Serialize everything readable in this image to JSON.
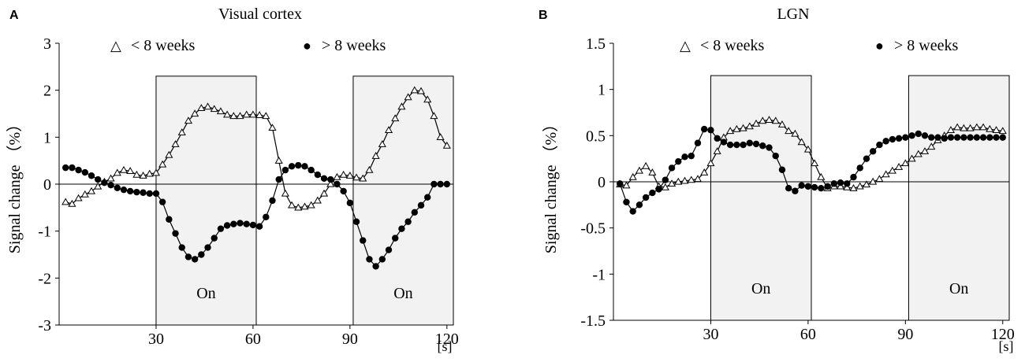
{
  "chart_data": [
    {
      "type": "line",
      "panel_label": "A",
      "title": "Visual cortex",
      "xlabel": "[s]",
      "ylabel": "Signal change （%）",
      "xlim": [
        0,
        122
      ],
      "ylim": [
        -3,
        3
      ],
      "xticks": [
        30,
        60,
        90,
        120
      ],
      "xtick_labels": [
        "30",
        "60",
        "90",
        "120"
      ],
      "yticks": [
        3,
        2,
        1,
        0,
        -1,
        -2,
        -3
      ],
      "ytick_labels": [
        "3",
        "2",
        "1",
        "0",
        "-1",
        "-2",
        "-3"
      ],
      "on_blocks": [
        {
          "label": "On",
          "start": 30,
          "end": 61,
          "top": 2.3
        },
        {
          "label": "On",
          "start": 91,
          "end": 122,
          "top": 2.3
        }
      ],
      "legend": [
        {
          "marker": "open-triangle",
          "symbol": "△",
          "label": "< 8 weeks"
        },
        {
          "marker": "filled-circle",
          "symbol": "●",
          "label": "> 8 weeks"
        }
      ],
      "series": [
        {
          "name": "< 8 weeks",
          "marker": "open-triangle",
          "x": [
            2,
            4,
            6,
            8,
            10,
            12,
            14,
            16,
            18,
            20,
            22,
            24,
            26,
            28,
            30,
            32,
            34,
            36,
            38,
            40,
            42,
            44,
            46,
            48,
            50,
            52,
            54,
            56,
            58,
            60,
            62,
            64,
            66,
            68,
            70,
            72,
            74,
            76,
            78,
            80,
            82,
            84,
            86,
            88,
            90,
            92,
            94,
            96,
            98,
            100,
            102,
            104,
            106,
            108,
            110,
            112,
            114,
            116,
            118,
            120
          ],
          "values": [
            -0.38,
            -0.42,
            -0.3,
            -0.22,
            -0.15,
            -0.05,
            0.05,
            0.12,
            0.24,
            0.3,
            0.28,
            0.2,
            0.18,
            0.22,
            0.24,
            0.42,
            0.62,
            0.85,
            1.1,
            1.35,
            1.5,
            1.62,
            1.65,
            1.6,
            1.55,
            1.48,
            1.45,
            1.45,
            1.48,
            1.48,
            1.47,
            1.45,
            1.2,
            0.5,
            -0.2,
            -0.45,
            -0.5,
            -0.48,
            -0.45,
            -0.35,
            -0.2,
            0.0,
            0.15,
            0.2,
            0.18,
            0.14,
            0.12,
            0.3,
            0.6,
            0.85,
            1.15,
            1.4,
            1.65,
            1.85,
            2.0,
            1.98,
            1.8,
            1.45,
            1.0,
            0.82
          ]
        },
        {
          "name": "> 8 weeks",
          "marker": "filled-circle",
          "x": [
            2,
            4,
            6,
            8,
            10,
            12,
            14,
            16,
            18,
            20,
            22,
            24,
            26,
            28,
            30,
            32,
            34,
            36,
            38,
            40,
            42,
            44,
            46,
            48,
            50,
            52,
            54,
            56,
            58,
            60,
            62,
            64,
            66,
            68,
            70,
            72,
            74,
            76,
            78,
            80,
            82,
            84,
            86,
            88,
            90,
            92,
            94,
            96,
            98,
            100,
            102,
            104,
            106,
            108,
            110,
            112,
            114,
            116,
            118,
            120
          ],
          "values": [
            0.35,
            0.35,
            0.3,
            0.25,
            0.18,
            0.1,
            0.03,
            -0.02,
            -0.08,
            -0.12,
            -0.15,
            -0.17,
            -0.18,
            -0.2,
            -0.2,
            -0.38,
            -0.75,
            -1.05,
            -1.35,
            -1.55,
            -1.6,
            -1.5,
            -1.35,
            -1.15,
            -0.95,
            -0.88,
            -0.85,
            -0.83,
            -0.85,
            -0.87,
            -0.9,
            -0.7,
            -0.35,
            0.1,
            0.3,
            0.38,
            0.4,
            0.38,
            0.3,
            0.2,
            0.12,
            0.1,
            0.0,
            -0.15,
            -0.4,
            -0.8,
            -1.2,
            -1.6,
            -1.75,
            -1.6,
            -1.4,
            -1.15,
            -0.95,
            -0.8,
            -0.6,
            -0.45,
            -0.28,
            0.0,
            0.0,
            0.0
          ]
        }
      ]
    },
    {
      "type": "line",
      "panel_label": "B",
      "title": "LGN",
      "xlabel": "[s]",
      "ylabel": "Signal change （%）",
      "xlim": [
        0,
        122
      ],
      "ylim": [
        -1.5,
        1.5
      ],
      "xticks": [
        30,
        60,
        90,
        120
      ],
      "xtick_labels": [
        "30",
        "60",
        "90",
        "120"
      ],
      "yticks": [
        1.5,
        1,
        0.5,
        0,
        -0.5,
        -1,
        -1.5
      ],
      "ytick_labels": [
        "1.5",
        "1",
        "0.5",
        "0",
        "-0.5",
        "-1",
        "-1.5"
      ],
      "on_blocks": [
        {
          "label": "On",
          "start": 30,
          "end": 61,
          "top": 1.15
        },
        {
          "label": "On",
          "start": 91,
          "end": 122,
          "top": 1.15
        }
      ],
      "legend": [
        {
          "marker": "open-triangle",
          "symbol": "△",
          "label": "< 8 weeks"
        },
        {
          "marker": "filled-circle",
          "symbol": "●",
          "label": "> 8 weeks"
        }
      ],
      "series": [
        {
          "name": "< 8 weeks",
          "marker": "open-triangle",
          "x": [
            2,
            4,
            6,
            8,
            10,
            12,
            14,
            16,
            18,
            20,
            22,
            24,
            26,
            28,
            30,
            32,
            34,
            36,
            38,
            40,
            42,
            44,
            46,
            48,
            50,
            52,
            54,
            56,
            58,
            60,
            62,
            64,
            66,
            68,
            70,
            72,
            74,
            76,
            78,
            80,
            82,
            84,
            86,
            88,
            90,
            92,
            94,
            96,
            98,
            100,
            102,
            104,
            106,
            108,
            110,
            112,
            114,
            116,
            118,
            120
          ],
          "values": [
            -0.03,
            -0.04,
            0.05,
            0.12,
            0.17,
            0.1,
            -0.05,
            -0.06,
            -0.02,
            0.0,
            0.01,
            0.02,
            0.03,
            0.1,
            0.2,
            0.33,
            0.48,
            0.55,
            0.57,
            0.58,
            0.6,
            0.63,
            0.66,
            0.67,
            0.66,
            0.62,
            0.55,
            0.52,
            0.43,
            0.35,
            0.2,
            0.05,
            -0.07,
            -0.05,
            -0.05,
            -0.06,
            -0.07,
            -0.05,
            -0.03,
            0.0,
            0.03,
            0.08,
            0.12,
            0.16,
            0.2,
            0.25,
            0.3,
            0.33,
            0.38,
            0.45,
            0.5,
            0.56,
            0.59,
            0.58,
            0.58,
            0.59,
            0.59,
            0.57,
            0.56,
            0.55
          ]
        },
        {
          "name": "> 8 weeks",
          "marker": "filled-circle",
          "x": [
            2,
            4,
            6,
            8,
            10,
            12,
            14,
            16,
            18,
            20,
            22,
            24,
            26,
            28,
            30,
            32,
            34,
            36,
            38,
            40,
            42,
            44,
            46,
            48,
            50,
            52,
            54,
            56,
            58,
            60,
            62,
            64,
            66,
            68,
            70,
            72,
            74,
            76,
            78,
            80,
            82,
            84,
            86,
            88,
            90,
            92,
            94,
            96,
            98,
            100,
            102,
            104,
            106,
            108,
            110,
            112,
            114,
            116,
            118,
            120
          ],
          "values": [
            -0.02,
            -0.22,
            -0.32,
            -0.25,
            -0.17,
            -0.12,
            -0.08,
            0.02,
            0.15,
            0.22,
            0.27,
            0.28,
            0.42,
            0.57,
            0.56,
            0.47,
            0.43,
            0.4,
            0.4,
            0.4,
            0.42,
            0.41,
            0.39,
            0.37,
            0.28,
            0.13,
            -0.07,
            -0.1,
            -0.04,
            -0.05,
            -0.06,
            -0.07,
            -0.05,
            -0.02,
            -0.01,
            -0.02,
            0.05,
            0.15,
            0.25,
            0.33,
            0.4,
            0.44,
            0.46,
            0.47,
            0.48,
            0.5,
            0.52,
            0.5,
            0.48,
            0.48,
            0.47,
            0.48,
            0.48,
            0.48,
            0.48,
            0.48,
            0.48,
            0.48,
            0.48,
            0.48
          ]
        }
      ]
    }
  ]
}
